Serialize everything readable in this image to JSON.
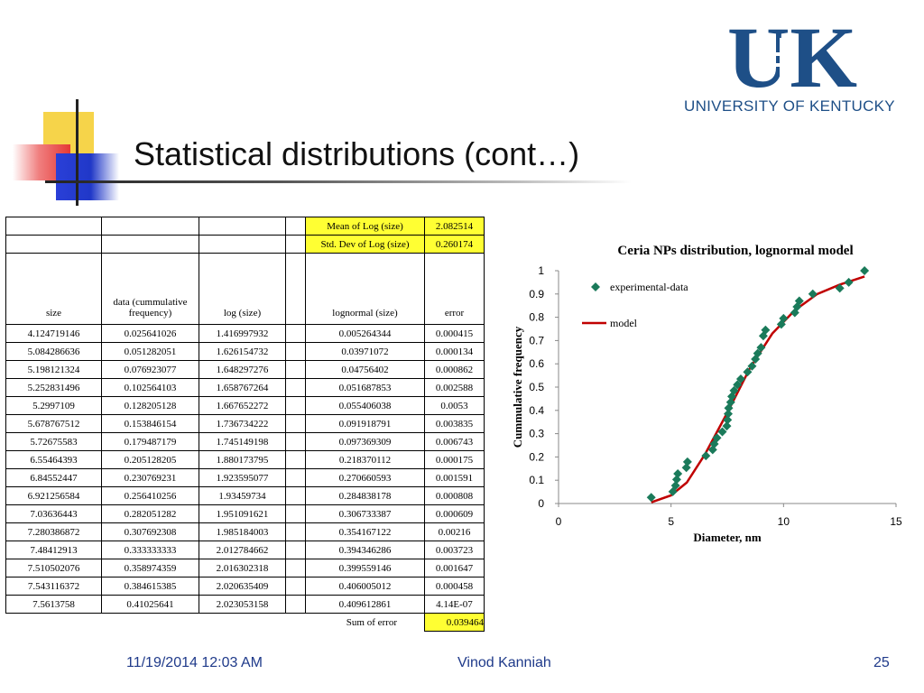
{
  "slide": {
    "title": "Statistical distributions (cont…)",
    "logo_text": "UK",
    "logo_subtitle": "UNIVERSITY OF KENTUCKY"
  },
  "footer": {
    "date": "11/19/2014 12:03 AM",
    "author": "Vinod Kanniah",
    "page": "25"
  },
  "table": {
    "summary": {
      "mean_label": "Mean of Log (size)",
      "mean_value": "2.082514",
      "std_label": "Std. Dev of Log (size)",
      "std_value": "0.260174"
    },
    "headers": [
      "size",
      "data (cummulative frequency)",
      "log (size)",
      "",
      "lognormal (size)",
      "error"
    ],
    "rows": [
      [
        "4.124719146",
        "0.025641026",
        "1.416997932",
        "0.005264344",
        "0.000415"
      ],
      [
        "5.084286636",
        "0.051282051",
        "1.626154732",
        "0.03971072",
        "0.000134"
      ],
      [
        "5.198121324",
        "0.076923077",
        "1.648297276",
        "0.04756402",
        "0.000862"
      ],
      [
        "5.252831496",
        "0.102564103",
        "1.658767264",
        "0.051687853",
        "0.002588"
      ],
      [
        "5.2997109",
        "0.128205128",
        "1.667652272",
        "0.055406038",
        "0.0053"
      ],
      [
        "5.678767512",
        "0.153846154",
        "1.736734222",
        "0.091918791",
        "0.003835"
      ],
      [
        "5.72675583",
        "0.179487179",
        "1.745149198",
        "0.097369309",
        "0.006743"
      ],
      [
        "6.55464393",
        "0.205128205",
        "1.880173795",
        "0.218370112",
        "0.000175"
      ],
      [
        "6.84552447",
        "0.230769231",
        "1.923595077",
        "0.270660593",
        "0.001591"
      ],
      [
        "6.921256584",
        "0.256410256",
        "1.93459734",
        "0.284838178",
        "0.000808"
      ],
      [
        "7.03636443",
        "0.282051282",
        "1.951091621",
        "0.306733387",
        "0.000609"
      ],
      [
        "7.280386872",
        "0.307692308",
        "1.985184003",
        "0.354167122",
        "0.00216"
      ],
      [
        "7.48412913",
        "0.333333333",
        "2.012784662",
        "0.394346286",
        "0.003723"
      ],
      [
        "7.510502076",
        "0.358974359",
        "2.016302318",
        "0.399559146",
        "0.001647"
      ],
      [
        "7.543116372",
        "0.384615385",
        "2.020635409",
        "0.406005012",
        "0.000458"
      ],
      [
        "7.5613758",
        "0.41025641",
        "2.023053158",
        "0.409612861",
        "4.14E-07"
      ]
    ],
    "sum_label": "Sum of error",
    "sum_value": "0.039464"
  },
  "chart_data": {
    "type": "scatter",
    "title": "Ceria NPs distribution, lognormal model",
    "xlabel": "Diameter, nm",
    "ylabel": "Cummulative frequency",
    "xlim": [
      0,
      15
    ],
    "ylim": [
      0,
      1
    ],
    "xticks": [
      "0",
      "5",
      "10",
      "15"
    ],
    "yticks": [
      "0",
      "0.1",
      "0.2",
      "0.3",
      "0.4",
      "0.5",
      "0.6",
      "0.7",
      "0.8",
      "0.9",
      "1"
    ],
    "legend_position": "top-left",
    "series": [
      {
        "name": "experimental-data",
        "kind": "markers",
        "color": "#1a7a5a",
        "x": [
          4.12,
          5.08,
          5.2,
          5.25,
          5.3,
          5.68,
          5.73,
          6.55,
          6.85,
          6.92,
          7.04,
          7.28,
          7.48,
          7.51,
          7.54,
          7.56,
          7.65,
          7.7,
          7.8,
          7.95,
          8.1,
          8.4,
          8.6,
          8.75,
          8.85,
          9.0,
          9.1,
          9.2,
          9.9,
          10.0,
          10.5,
          10.6,
          10.7,
          11.3,
          12.5,
          12.9,
          13.6
        ],
        "y": [
          0.026,
          0.051,
          0.077,
          0.103,
          0.128,
          0.154,
          0.179,
          0.205,
          0.231,
          0.256,
          0.282,
          0.308,
          0.333,
          0.359,
          0.385,
          0.41,
          0.435,
          0.46,
          0.485,
          0.51,
          0.535,
          0.565,
          0.59,
          0.62,
          0.645,
          0.67,
          0.72,
          0.745,
          0.77,
          0.795,
          0.82,
          0.845,
          0.87,
          0.9,
          0.925,
          0.95,
          1.0
        ]
      },
      {
        "name": "model",
        "kind": "line",
        "color": "#c00000",
        "x": [
          4.12,
          5.0,
          5.7,
          6.5,
          7.5,
          8.5,
          9.5,
          10.5,
          11.5,
          12.5,
          13.6
        ],
        "y": [
          0.005,
          0.035,
          0.09,
          0.21,
          0.39,
          0.58,
          0.73,
          0.83,
          0.9,
          0.94,
          0.975
        ]
      }
    ]
  }
}
